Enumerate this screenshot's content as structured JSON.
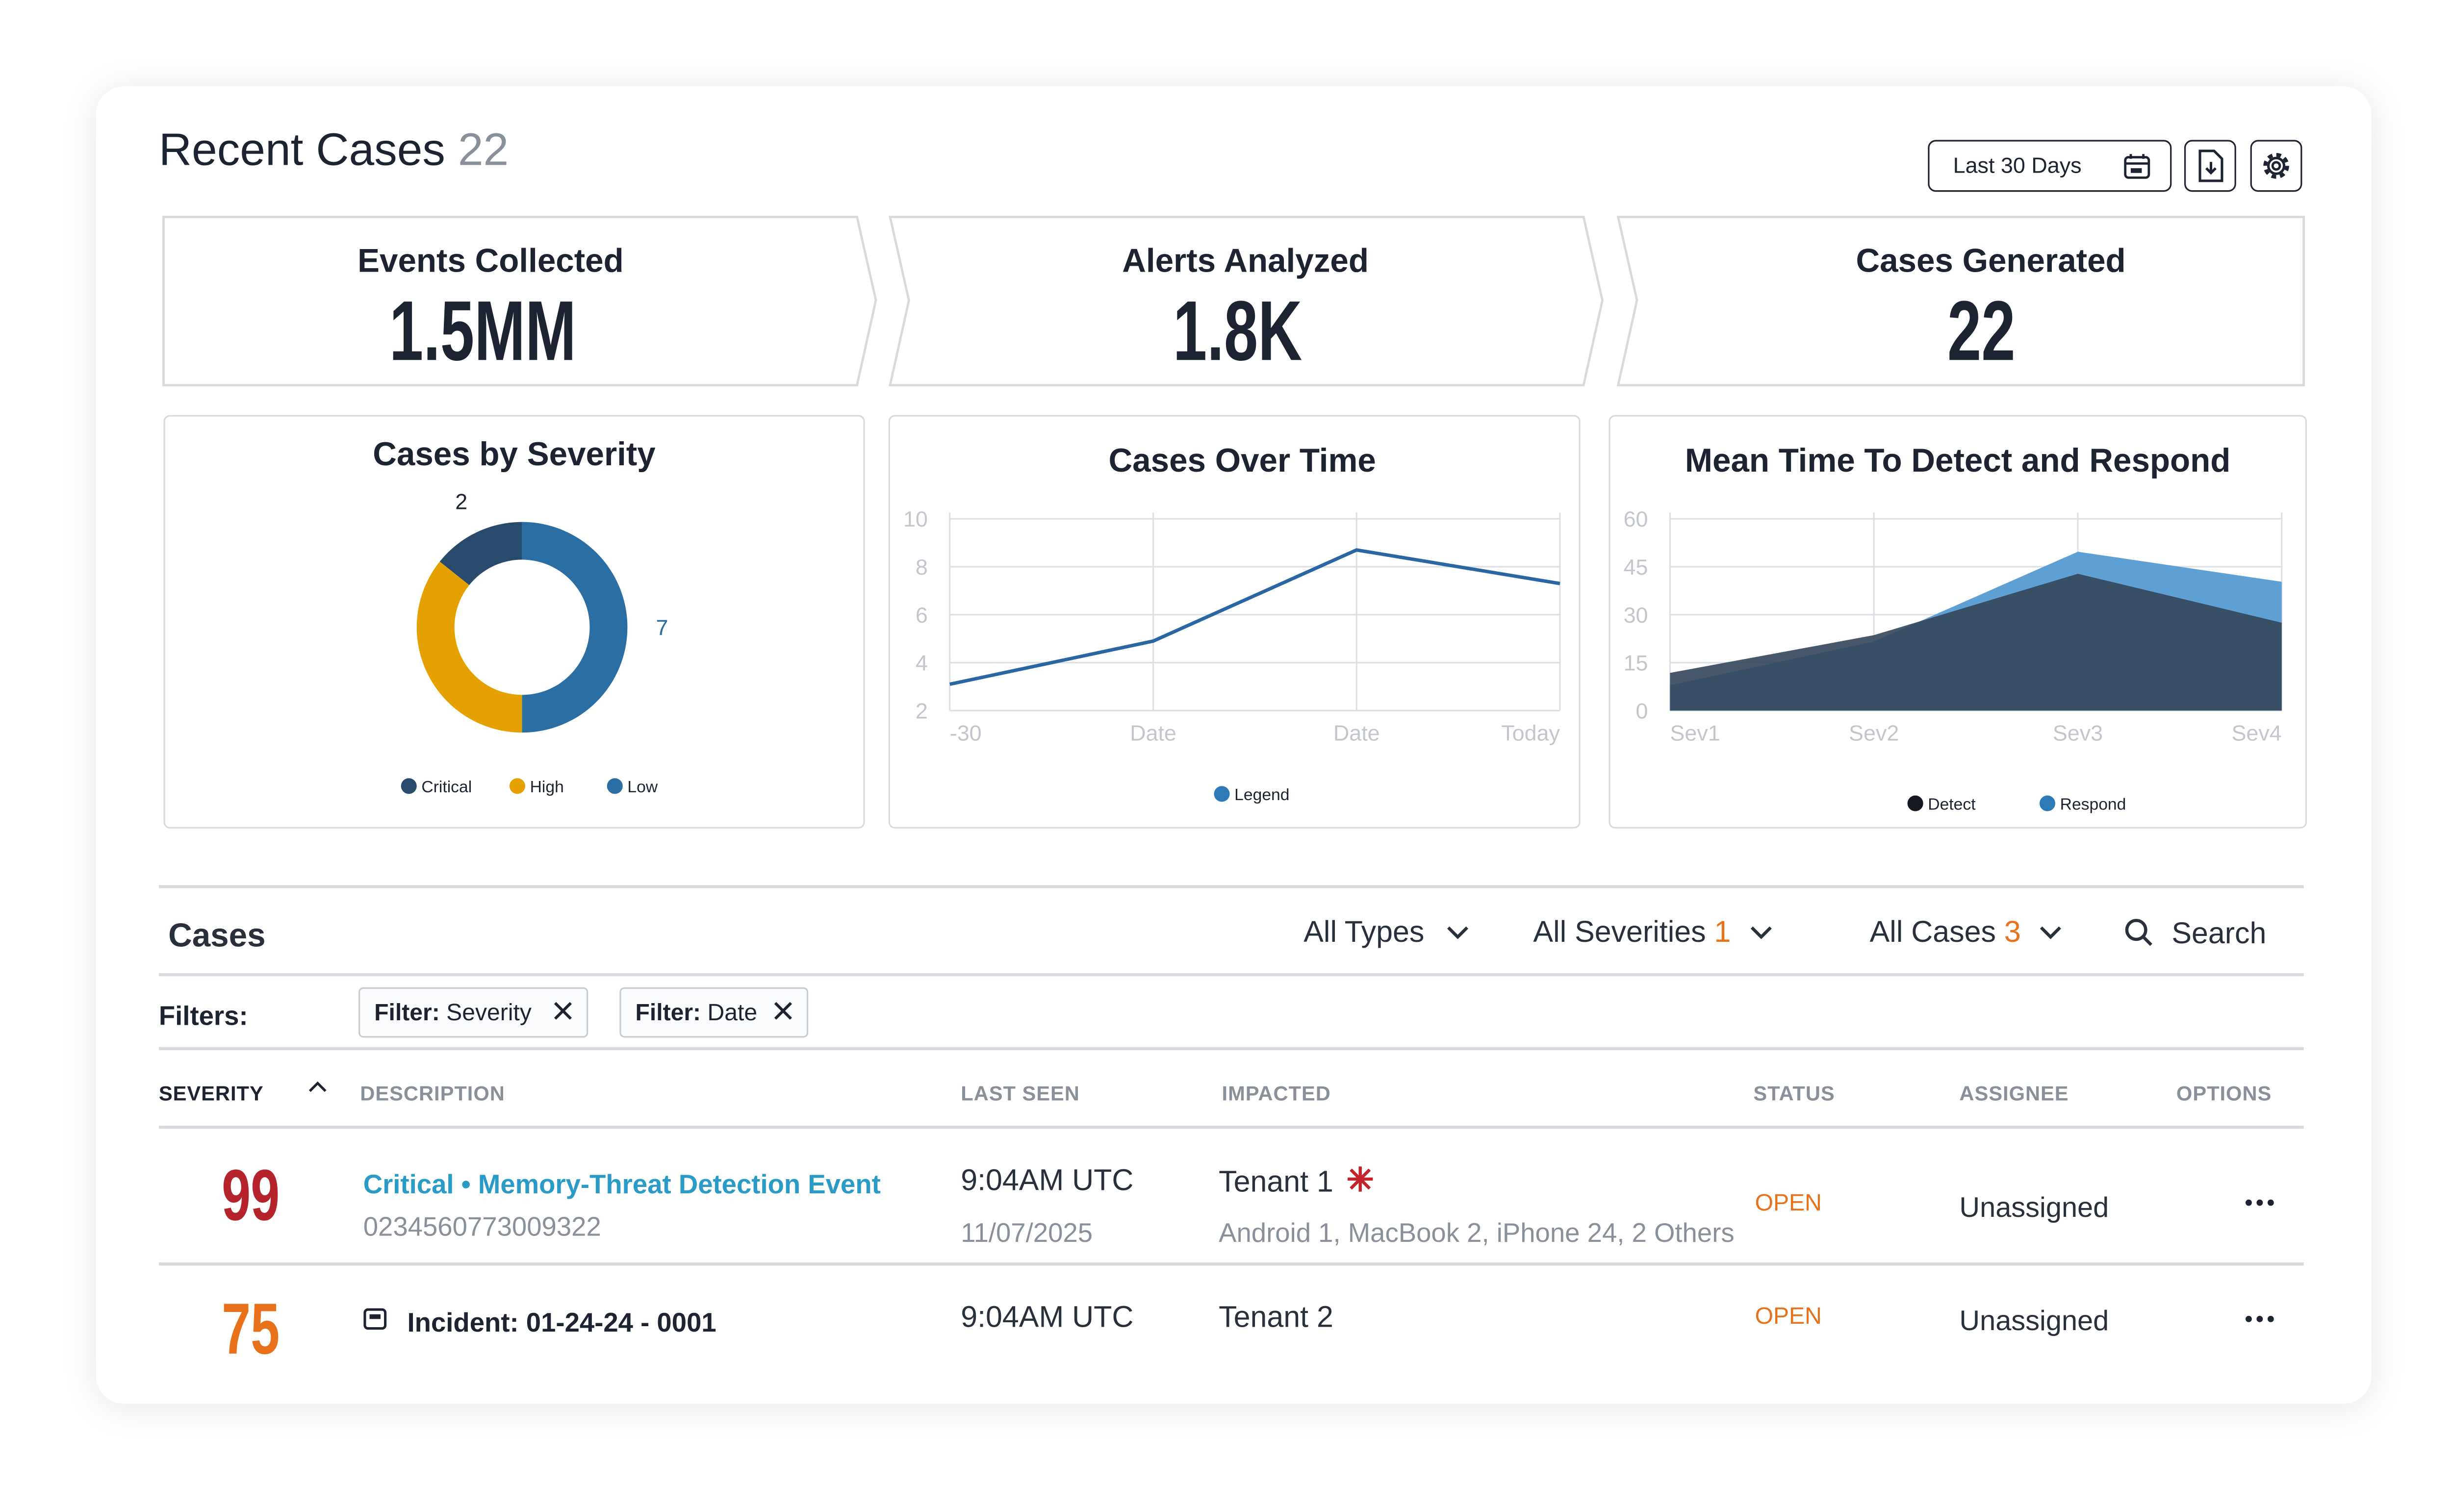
{
  "header": {
    "title": "Recent Cases",
    "count": "22",
    "date_range": "Last 30 Days"
  },
  "kpis": [
    {
      "label": "Events Collected",
      "value": "1.5MM"
    },
    {
      "label": "Alerts Analyzed",
      "value": "1.8K"
    },
    {
      "label": "Cases Generated",
      "value": "22"
    }
  ],
  "charts": [
    {
      "type": "donut",
      "title": "Cases by Severity",
      "categories": [
        "Critical",
        "High",
        "Low"
      ],
      "values": [
        2,
        5,
        7
      ],
      "value_labels": [
        "2",
        null,
        "7"
      ],
      "colors": [
        "#284b6d",
        "#e5a100",
        "#2b6ea3"
      ]
    },
    {
      "type": "line",
      "title": "Cases Over Time",
      "categories": [
        "-30",
        "Date",
        "Date",
        "Today"
      ],
      "series": [
        {
          "name": "Legend",
          "color": "#2a66a2",
          "values": [
            3.1,
            4.9,
            8.7,
            7.3
          ]
        }
      ],
      "ylim": [
        2,
        10
      ],
      "yticks": [
        2,
        4,
        6,
        8,
        10
      ],
      "grid": true
    },
    {
      "type": "area",
      "title": "Mean Time To Detect and Respond",
      "categories": [
        "Sev1",
        "Sev2",
        "Sev3",
        "Sev4"
      ],
      "series": [
        {
          "name": "Detect",
          "color": "#34465a",
          "values": [
            11.8,
            23.6,
            42.8,
            27.5
          ]
        },
        {
          "name": "Respond",
          "color": "#5e9fd4",
          "values": [
            7.9,
            21.6,
            49.7,
            40.3
          ]
        }
      ],
      "ylim": [
        0,
        60
      ],
      "yticks": [
        0,
        15,
        30,
        45,
        60
      ],
      "grid": true
    }
  ],
  "cases": {
    "title": "Cases",
    "type_filter": "All Types",
    "severity_filter": "All Severities",
    "severity_count": "1",
    "case_filter": "All Cases",
    "case_count": "3",
    "search": "Search",
    "filters_label": "Filters:",
    "chips": [
      {
        "key": "Filter:",
        "value": "Severity"
      },
      {
        "key": "Filter:",
        "value": "Date"
      }
    ]
  },
  "table": {
    "columns": [
      "SEVERITY",
      "DESCRIPTION",
      "LAST SEEN",
      "IMPACTED",
      "STATUS",
      "ASSIGNEE",
      "OPTIONS"
    ],
    "rows": [
      {
        "severity": 99,
        "title": "Critical • Memory-Threat Detection Event",
        "id": "0234560773009322",
        "time": "9:04AM UTC",
        "date": "11/07/2025",
        "tenant": "Tenant 1",
        "devices": "Android 1, MacBook 2, iPhone 24, 2 Others",
        "status": "OPEN",
        "assignee": "Unassigned"
      },
      {
        "severity": 75,
        "title": "Incident: 01-24-24 - 0001",
        "time": "9:04AM UTC",
        "tenant": "Tenant 2",
        "status": "OPEN",
        "assignee": "Unassigned"
      }
    ]
  }
}
